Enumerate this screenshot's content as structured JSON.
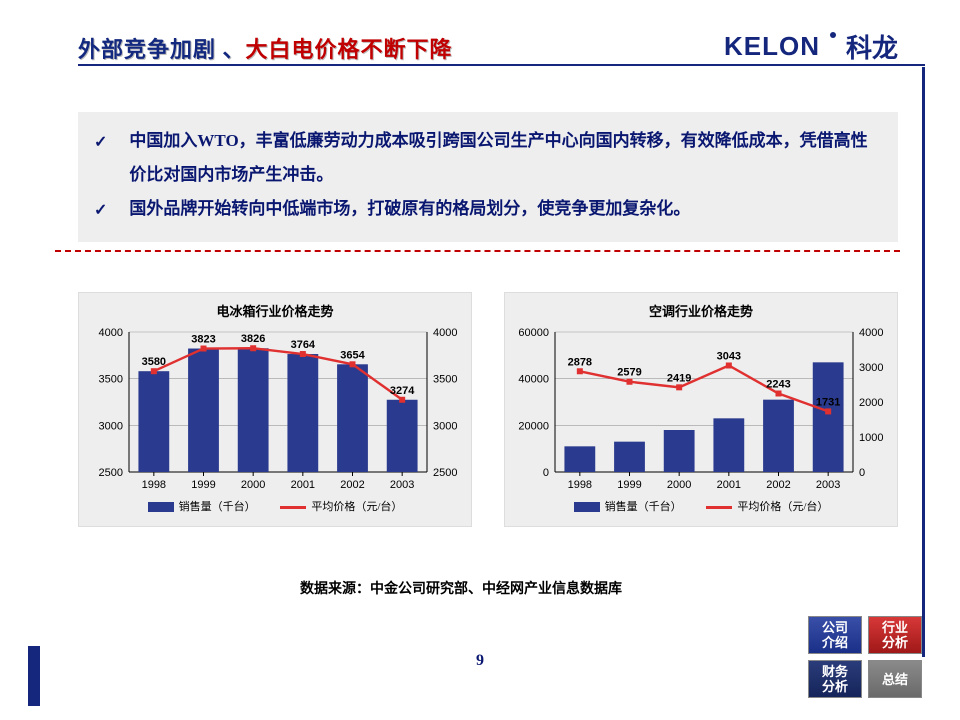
{
  "header": {
    "title_part1": "外部竞争加剧 、",
    "title_part2": "大白电价格不断下降",
    "logo_en": "KELON",
    "logo_cn": "科龙"
  },
  "bullets": [
    "中国加入WTO，丰富低廉劳动力成本吸引跨国公司生产中心向国内转移，有效降低成本，凭借高性价比对国内市场产生冲击。",
    "国外品牌开始转向中低端市场，打破原有的格局划分，使竞争更加复杂化。"
  ],
  "charts": {
    "common": {
      "categories": [
        "1998",
        "1999",
        "2000",
        "2001",
        "2002",
        "2003"
      ],
      "bar_color": "#2a3a8e",
      "line_color": "#e03030",
      "bg_color": "#eeeeee",
      "grid_color": "#9a9a9a",
      "axis_color": "#000000",
      "label_fontsize": 11,
      "title_fontsize": 13,
      "legend_bar": "销售量（千台）",
      "legend_line": "平均价格（元/台）",
      "bar_width": 0.62
    },
    "left": {
      "title": "电冰箱行业价格走势",
      "type": "bar+line",
      "bars": [
        3580,
        3823,
        3826,
        3764,
        3654,
        3274
      ],
      "line": [
        3580,
        3823,
        3826,
        3764,
        3654,
        3274
      ],
      "value_labels": [
        "3580",
        "3823",
        "3826",
        "3764",
        "3654",
        "3274"
      ],
      "y_left": {
        "min": 2500,
        "max": 4000,
        "step": 500,
        "label": ""
      },
      "y_right": {
        "min": 2500,
        "max": 4000,
        "step": 500,
        "label": ""
      }
    },
    "right": {
      "title": "空调行业价格走势",
      "type": "bar+line",
      "bars": [
        11000,
        13000,
        18000,
        23000,
        31000,
        47000
      ],
      "line": [
        2878,
        2579,
        2419,
        3043,
        2243,
        1731
      ],
      "value_labels": [
        "2878",
        "2579",
        "2419",
        "3043",
        "2243",
        "1731"
      ],
      "y_left": {
        "min": 0,
        "max": 60000,
        "step": 20000,
        "label": ""
      },
      "y_right": {
        "min": 0,
        "max": 4000,
        "step": 1000,
        "label": ""
      }
    }
  },
  "source": "数据来源：中金公司研究部、中经网产业信息数据库",
  "page_number": "9",
  "nav": {
    "a": "公司\n介绍",
    "b": "行业\n分析",
    "c": "财务\n分析",
    "d": "总结"
  }
}
